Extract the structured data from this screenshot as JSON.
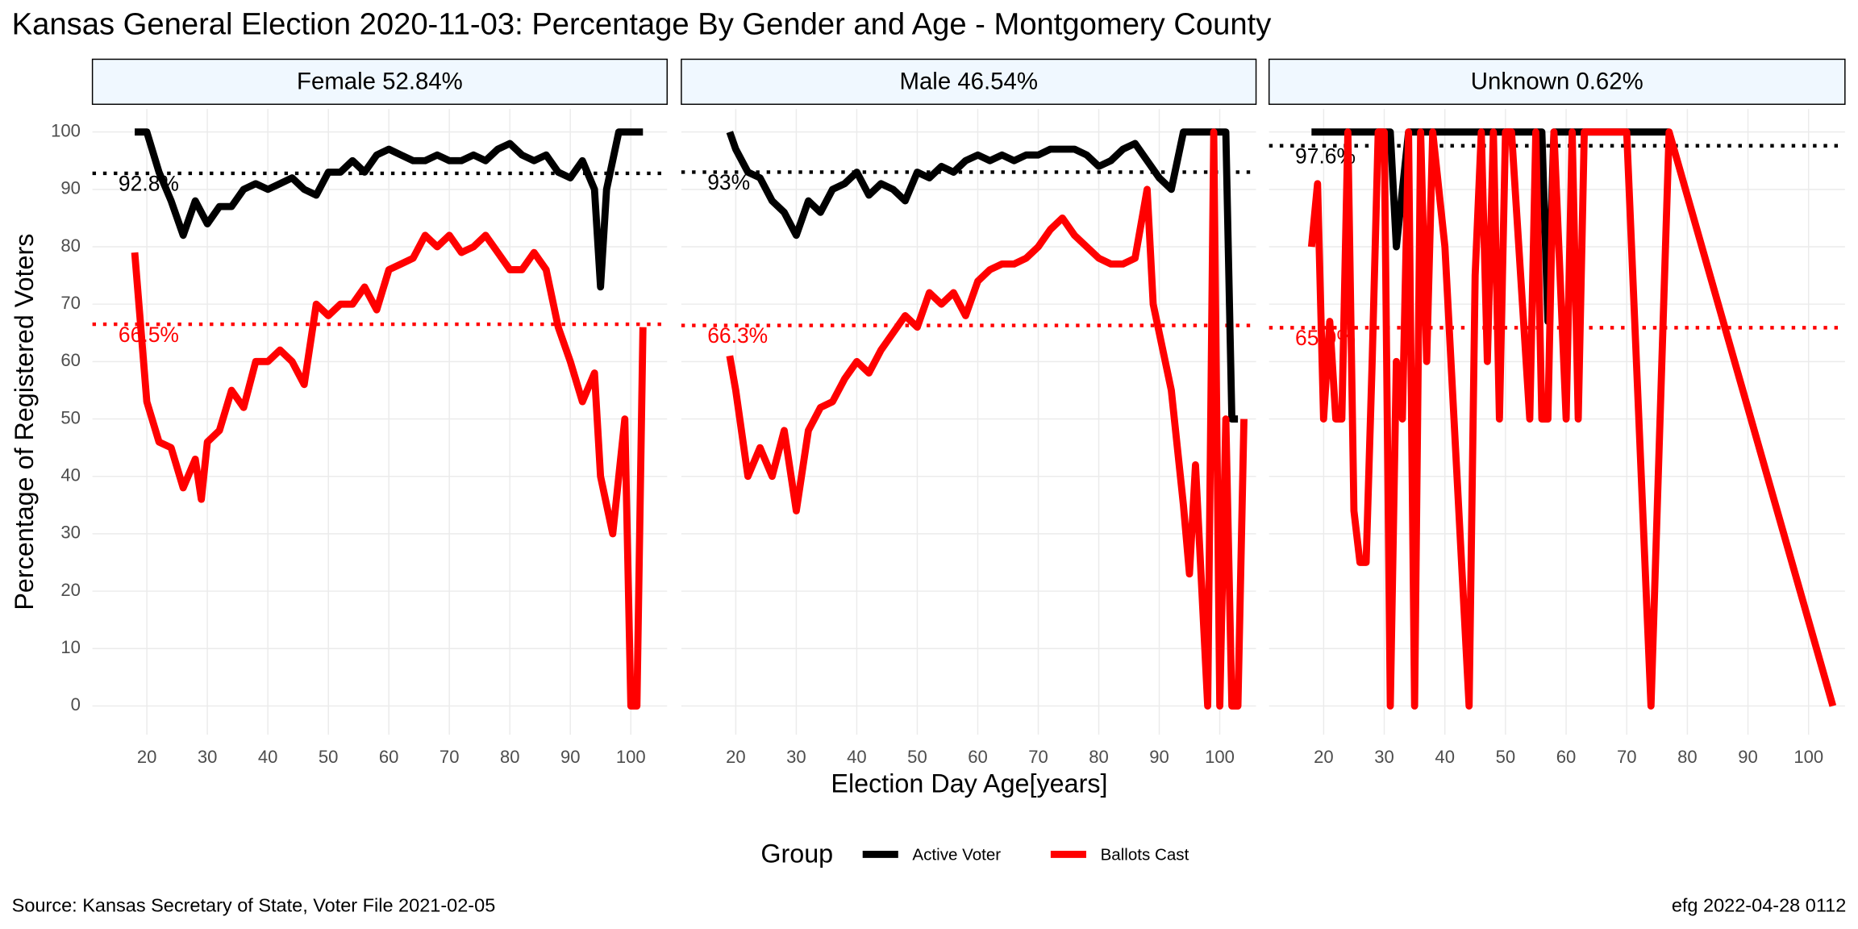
{
  "title": "Kansas General Election 2020-11-03:  Percentage By Gender and Age - Montgomery County",
  "x_label": "Election Day Age[years]",
  "y_label": "Percentage of Registered Voters",
  "source": "Source:  Kansas Secretary of State, Voter File  2021-02-05",
  "caption": "efg 2022-04-28 0112",
  "legend": {
    "title": "Group",
    "series": [
      {
        "name": "Active Voter",
        "color": "#000000"
      },
      {
        "name": "Ballots Cast",
        "color": "#ff0000"
      }
    ]
  },
  "chart_data": [
    {
      "type": "line",
      "title": "Female 52.84%",
      "xlim": [
        11,
        106
      ],
      "ylim": [
        -5,
        104
      ],
      "xticks": [
        20,
        30,
        40,
        50,
        60,
        70,
        80,
        90,
        100
      ],
      "yticks": [
        0,
        10,
        20,
        30,
        40,
        50,
        60,
        70,
        80,
        90,
        100
      ],
      "ref_lines": [
        {
          "value": 92.8,
          "label": "92.8%"
        },
        {
          "value": 66.5,
          "label": "66.5%"
        }
      ],
      "series": [
        {
          "x": [
            18,
            20,
            22,
            24,
            26,
            28,
            30,
            32,
            34,
            36,
            38,
            40,
            42,
            44,
            46,
            48,
            50,
            52,
            54,
            56,
            58,
            60,
            62,
            64,
            66,
            68,
            70,
            72,
            74,
            76,
            78,
            80,
            82,
            84,
            86,
            88,
            90,
            92,
            94,
            95,
            96,
            98,
            100,
            102
          ],
          "values": [
            100,
            100,
            93,
            88,
            82,
            88,
            84,
            87,
            87,
            90,
            91,
            90,
            91,
            92,
            90,
            89,
            93,
            93,
            95,
            93,
            96,
            97,
            96,
            95,
            95,
            96,
            95,
            95,
            96,
            95,
            97,
            98,
            96,
            95,
            96,
            93,
            92,
            95,
            90,
            73,
            90,
            100,
            100,
            100
          ]
        },
        {
          "x": [
            18,
            20,
            22,
            24,
            26,
            28,
            29,
            30,
            32,
            34,
            36,
            38,
            40,
            42,
            44,
            46,
            48,
            50,
            52,
            54,
            56,
            58,
            60,
            62,
            64,
            66,
            68,
            70,
            72,
            74,
            76,
            78,
            80,
            82,
            84,
            86,
            88,
            90,
            92,
            94,
            95,
            97,
            99,
            100,
            101,
            102
          ],
          "values": [
            79,
            53,
            46,
            45,
            38,
            43,
            36,
            46,
            48,
            55,
            52,
            60,
            60,
            62,
            60,
            56,
            70,
            68,
            70,
            70,
            73,
            69,
            76,
            77,
            78,
            82,
            80,
            82,
            79,
            80,
            82,
            79,
            76,
            76,
            79,
            76,
            66,
            60,
            53,
            58,
            40,
            30,
            50,
            0,
            0,
            66
          ]
        }
      ]
    },
    {
      "type": "line",
      "title": "Male 46.54%",
      "xlim": [
        11,
        106
      ],
      "ylim": [
        -5,
        104
      ],
      "xticks": [
        20,
        30,
        40,
        50,
        60,
        70,
        80,
        90,
        100
      ],
      "yticks": [
        0,
        10,
        20,
        30,
        40,
        50,
        60,
        70,
        80,
        90,
        100
      ],
      "ref_lines": [
        {
          "value": 93,
          "label": "93%"
        },
        {
          "value": 66.3,
          "label": "66.3%"
        }
      ],
      "series": [
        {
          "x": [
            19,
            20,
            22,
            24,
            26,
            28,
            30,
            32,
            34,
            36,
            38,
            40,
            42,
            44,
            46,
            48,
            50,
            52,
            54,
            56,
            58,
            60,
            62,
            64,
            66,
            68,
            70,
            72,
            74,
            76,
            78,
            80,
            82,
            84,
            86,
            88,
            90,
            92,
            94,
            96,
            98,
            100,
            101,
            102,
            103
          ],
          "values": [
            100,
            97,
            93,
            92,
            88,
            86,
            82,
            88,
            86,
            90,
            91,
            93,
            89,
            91,
            90,
            88,
            93,
            92,
            94,
            93,
            95,
            96,
            95,
            96,
            95,
            96,
            96,
            97,
            97,
            97,
            96,
            94,
            95,
            97,
            98,
            95,
            92,
            90,
            100,
            100,
            100,
            100,
            100,
            50,
            50
          ]
        },
        {
          "x": [
            19,
            20,
            22,
            24,
            26,
            28,
            30,
            32,
            34,
            36,
            38,
            40,
            42,
            44,
            46,
            48,
            50,
            52,
            54,
            56,
            58,
            60,
            62,
            64,
            66,
            68,
            70,
            72,
            74,
            76,
            78,
            80,
            82,
            84,
            86,
            88,
            89,
            90,
            92,
            94,
            95,
            96,
            98,
            99,
            100,
            101,
            102,
            103,
            104
          ],
          "values": [
            61,
            55,
            40,
            45,
            40,
            48,
            34,
            48,
            52,
            53,
            57,
            60,
            58,
            62,
            65,
            68,
            66,
            72,
            70,
            72,
            68,
            74,
            76,
            77,
            77,
            78,
            80,
            83,
            85,
            82,
            80,
            78,
            77,
            77,
            78,
            90,
            70,
            65,
            55,
            35,
            23,
            42,
            0,
            100,
            0,
            50,
            0,
            0,
            50
          ]
        }
      ]
    },
    {
      "type": "line",
      "title": "Unknown 0.62%",
      "xlim": [
        11,
        106
      ],
      "ylim": [
        -5,
        104
      ],
      "xticks": [
        20,
        30,
        40,
        50,
        60,
        70,
        80,
        90,
        100
      ],
      "yticks": [
        0,
        10,
        20,
        30,
        40,
        50,
        60,
        70,
        80,
        90,
        100
      ],
      "ref_lines": [
        {
          "value": 97.6,
          "label": "97.6%"
        },
        {
          "value": 65.9,
          "label": "65.9%"
        }
      ],
      "series": [
        {
          "x": [
            18,
            30,
            31,
            32,
            34,
            56,
            57,
            58,
            76,
            77
          ],
          "values": [
            100,
            100,
            100,
            80,
            100,
            100,
            67,
            100,
            100,
            100
          ]
        },
        {
          "x": [
            18,
            19,
            20,
            21,
            22,
            23,
            24,
            25,
            26,
            27,
            28,
            29,
            30,
            31,
            32,
            33,
            34,
            35,
            36,
            37,
            38,
            40,
            44,
            45,
            46,
            47,
            48,
            49,
            50,
            51,
            54,
            55,
            56,
            57,
            58,
            60,
            61,
            62,
            63,
            65,
            70,
            74,
            77,
            104
          ],
          "values": [
            80,
            91,
            50,
            67,
            50,
            50,
            100,
            34,
            25,
            25,
            60,
            100,
            100,
            0,
            60,
            50,
            100,
            0,
            100,
            60,
            100,
            80,
            0,
            75,
            100,
            60,
            100,
            50,
            100,
            100,
            50,
            100,
            50,
            50,
            100,
            50,
            100,
            50,
            100,
            100,
            100,
            0,
            100,
            0
          ]
        }
      ]
    }
  ]
}
